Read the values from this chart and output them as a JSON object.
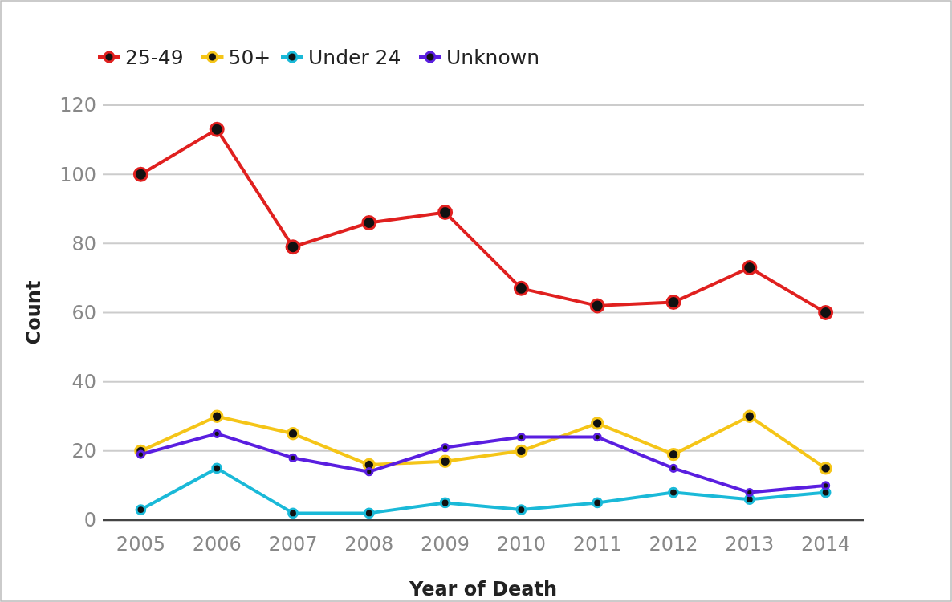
{
  "chart_data": {
    "type": "line",
    "xlabel": "Year of Death",
    "ylabel": "Count",
    "categories": [
      "2005",
      "2006",
      "2007",
      "2008",
      "2009",
      "2010",
      "2011",
      "2012",
      "2013",
      "2014"
    ],
    "series": [
      {
        "name": "25-49",
        "color": "#e0201f",
        "values": [
          100,
          113,
          79,
          86,
          89,
          67,
          62,
          63,
          73,
          60
        ]
      },
      {
        "name": "50+",
        "color": "#f5c518",
        "values": [
          20,
          30,
          25,
          16,
          17,
          20,
          28,
          19,
          30,
          15
        ]
      },
      {
        "name": "Under 24",
        "color": "#1ab9d8",
        "values": [
          3,
          15,
          2,
          2,
          5,
          3,
          5,
          8,
          6,
          8
        ]
      },
      {
        "name": "Unknown",
        "color": "#5a1ee0",
        "values": [
          19,
          25,
          18,
          14,
          21,
          24,
          24,
          15,
          8,
          10
        ]
      }
    ],
    "ylim": [
      0,
      120
    ],
    "yticks": [
      0,
      20,
      40,
      60,
      80,
      100,
      120
    ],
    "grid": "y",
    "legend": "top left",
    "marker": "circle",
    "line_style": "solid"
  }
}
